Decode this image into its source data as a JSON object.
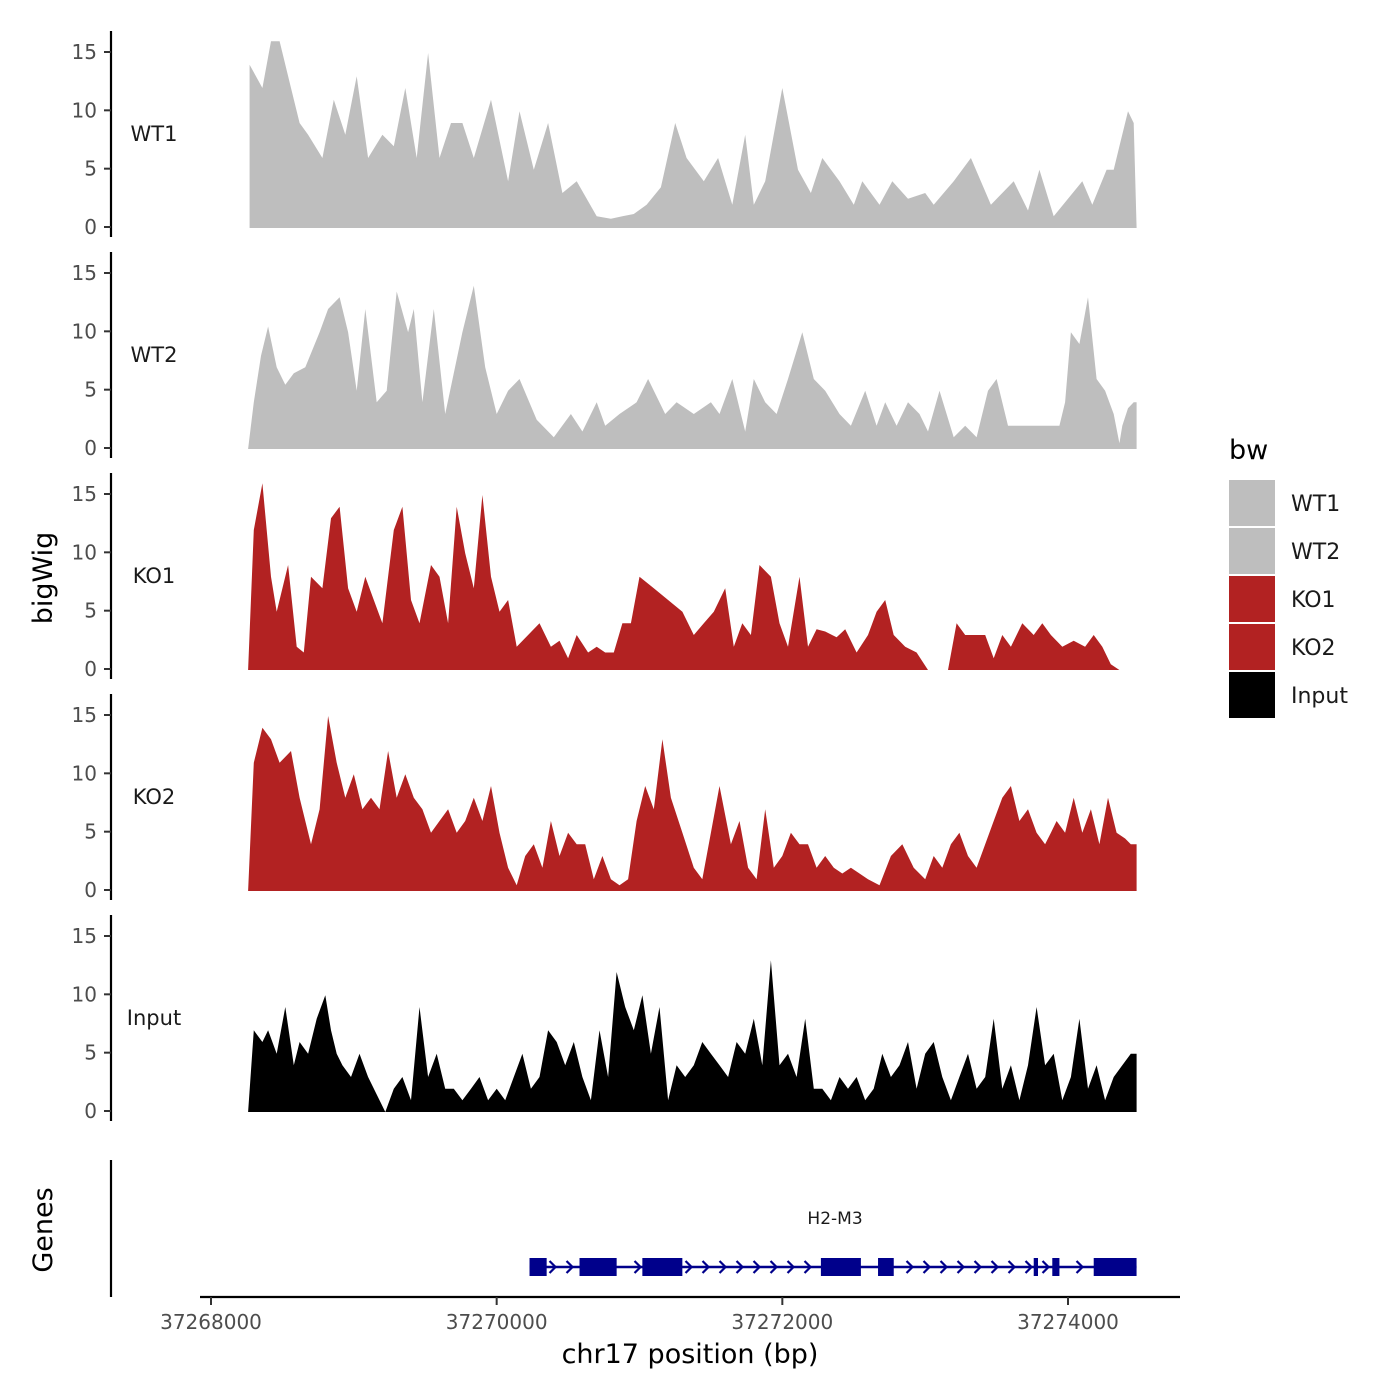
{
  "chart_data": {
    "type": "area",
    "subtype": "genome-browser-coverage",
    "xlabel": "chr17 position (bp)",
    "ylabel": "bigWig",
    "genes_label": "Genes",
    "xlim": [
      37267400,
      37274800
    ],
    "x_ticks": [
      37268000,
      37270000,
      37272000,
      37274000
    ],
    "ylim": [
      0,
      16
    ],
    "y_ticks": [
      0,
      5,
      10,
      15
    ],
    "legend": {
      "title": "bw",
      "entries": [
        {
          "name": "WT1",
          "color": "#bebebe"
        },
        {
          "name": "WT2",
          "color": "#bebebe"
        },
        {
          "name": "KO1",
          "color": "#b22222"
        },
        {
          "name": "KO2",
          "color": "#b22222"
        },
        {
          "name": "Input",
          "color": "#000000"
        }
      ]
    },
    "series": [
      {
        "name": "WT1",
        "color": "#bebebe",
        "x": [
          37268270,
          37268360,
          37268420,
          37268480,
          37268560,
          37268620,
          37268680,
          37268780,
          37268860,
          37268940,
          37269020,
          37269100,
          37269200,
          37269280,
          37269360,
          37269440,
          37269520,
          37269600,
          37269680,
          37269760,
          37269840,
          37269960,
          37270080,
          37270160,
          37270260,
          37270360,
          37270460,
          37270560,
          37270700,
          37270800,
          37270880,
          37270960,
          37271050,
          37271150,
          37271250,
          37271330,
          37271450,
          37271550,
          37271650,
          37271740,
          37271800,
          37271880,
          37272000,
          37272110,
          37272200,
          37272280,
          37272400,
          37272500,
          37272560,
          37272680,
          37272770,
          37272880,
          37273000,
          37273060,
          37273200,
          37273320,
          37273460,
          37273620,
          37273720,
          37273800,
          37273900,
          37274000,
          37274100,
          37274170,
          37274270,
          37274320,
          37274360,
          37274420,
          37274460,
          37274480
        ],
        "y": [
          14,
          12,
          16,
          16,
          12,
          9,
          8,
          6,
          11,
          8,
          13,
          6,
          8,
          7,
          12,
          6,
          15,
          6,
          9,
          9,
          6,
          11,
          4,
          10,
          5,
          9,
          3,
          4,
          1,
          0.8,
          1,
          1.2,
          2,
          3.5,
          9,
          6,
          4,
          6,
          2,
          8,
          2,
          4,
          12,
          5,
          3,
          6,
          4,
          2,
          4,
          2,
          4,
          2.5,
          3,
          2,
          4,
          6,
          2,
          4,
          1.5,
          5,
          1,
          2.5,
          4,
          2,
          5,
          5,
          7,
          10,
          9,
          0
        ],
        "breaks": []
      },
      {
        "name": "WT2",
        "color": "#bebebe",
        "x": [
          37268260,
          37268300,
          37268350,
          37268400,
          37268460,
          37268520,
          37268580,
          37268660,
          37268760,
          37268820,
          37268900,
          37268960,
          37269020,
          37269080,
          37269160,
          37269230,
          37269300,
          37269380,
          37269420,
          37269480,
          37269560,
          37269640,
          37269760,
          37269840,
          37269920,
          37270000,
          37270080,
          37270160,
          37270280,
          37270400,
          37270520,
          37270600,
          37270700,
          37270760,
          37270860,
          37270980,
          37271060,
          37271180,
          37271260,
          37271380,
          37271500,
          37271560,
          37271650,
          37271740,
          37271800,
          37271880,
          37271960,
          37272040,
          37272140,
          37272220,
          37272300,
          37272400,
          37272480,
          37272580,
          37272660,
          37272720,
          37272800,
          37272880,
          37272960,
          37273020,
          37273100,
          37273200,
          37273280,
          37273360,
          37273440,
          37273500,
          37273580,
          37273640,
          37273700,
          37273760,
          37273820,
          37273880,
          37273940,
          37273980,
          37274020,
          37274080,
          37274140,
          37274200,
          37274260,
          37274320,
          37274360,
          37274380,
          37274420,
          37274460,
          37274480
        ],
        "y": [
          0,
          4,
          8,
          10.5,
          7,
          5.5,
          6.5,
          7,
          10,
          12,
          13,
          10,
          5,
          12,
          4,
          5,
          13.5,
          10,
          12,
          4,
          12,
          3,
          10,
          14,
          7,
          3,
          5,
          6,
          2.5,
          1,
          3,
          1.5,
          4,
          2,
          3,
          4,
          6,
          3,
          4,
          3,
          4,
          3,
          6,
          1.5,
          6,
          4,
          3,
          6,
          10,
          6,
          5,
          3,
          2,
          5,
          2,
          4,
          2,
          4,
          3,
          1.5,
          5,
          1,
          2,
          1,
          5,
          6,
          2,
          2,
          2,
          2,
          2,
          2,
          2,
          4,
          10,
          9,
          13,
          6,
          5,
          3,
          0.5,
          2,
          3.5,
          4,
          4
        ],
        "breaks": []
      },
      {
        "name": "KO1",
        "color": "#b22222",
        "x": [
          37268260,
          37268300,
          37268360,
          37268420,
          37268460,
          37268540,
          37268600,
          37268650,
          37268700,
          37268780,
          37268840,
          37268900,
          37268960,
          37269020,
          37269080,
          37269140,
          37269200,
          37269280,
          37269340,
          37269400,
          37269460,
          37269540,
          37269600,
          37269660,
          37269720,
          37269780,
          37269840,
          37269900,
          37269960,
          37270020,
          37270080,
          37270140,
          37270220,
          37270300,
          37270380,
          37270440,
          37270500,
          37270560,
          37270640,
          37270700,
          37270760,
          37270820,
          37270880,
          37270940,
          37271000,
          37271100,
          37271200,
          37271300,
          37271380,
          37271450,
          37271520,
          37271600,
          37271660,
          37271720,
          37271780,
          37271840,
          37271920,
          37271980,
          37272040,
          37272120,
          37272180,
          37272240,
          37272300,
          37272380,
          37272440,
          37272520,
          37272600,
          37272660,
          37272720,
          37272780,
          37272860,
          37272940,
          37273020,
          37273100,
          37273160,
          37273220,
          37273280,
          37273320,
          37273380,
          37273420,
          37273480,
          37273540,
          37273600,
          37273680,
          37273760,
          37273820,
          37273880,
          37273960,
          37274040,
          37274120,
          37274180,
          37274240,
          37274300,
          37274360,
          37274420,
          37274480
        ],
        "y": [
          0,
          12,
          16,
          8,
          5,
          9,
          2,
          1.5,
          8,
          7,
          13,
          14,
          7,
          5,
          8,
          6,
          4,
          12,
          14,
          6,
          4,
          9,
          8,
          4,
          14,
          10,
          7,
          15,
          8,
          5,
          6,
          2,
          3,
          4,
          2,
          2.5,
          1,
          3,
          1.5,
          2,
          1.5,
          1.5,
          4,
          4,
          8,
          7,
          6,
          5,
          3,
          4,
          5,
          7,
          2,
          4,
          3,
          9,
          8,
          4,
          2,
          8,
          2,
          3.5,
          3.3,
          2.8,
          3.5,
          1.5,
          3,
          5,
          6,
          3,
          2,
          1.5,
          0,
          null,
          0,
          4,
          3,
          3,
          3,
          3,
          1,
          3,
          2,
          4,
          3,
          4,
          3,
          2,
          2.5,
          2,
          3,
          2,
          0.5,
          0,
          0,
          0
        ],
        "breaks": []
      },
      {
        "name": "KO2",
        "color": "#b22222",
        "x": [
          37268260,
          37268300,
          37268360,
          37268420,
          37268480,
          37268560,
          37268620,
          37268700,
          37268760,
          37268820,
          37268880,
          37268940,
          37269000,
          37269060,
          37269120,
          37269180,
          37269240,
          37269300,
          37269360,
          37269420,
          37269480,
          37269540,
          37269600,
          37269660,
          37269720,
          37269780,
          37269840,
          37269900,
          37269960,
          37270020,
          37270080,
          37270140,
          37270200,
          37270260,
          37270320,
          37270380,
          37270440,
          37270500,
          37270560,
          37270620,
          37270680,
          37270740,
          37270800,
          37270860,
          37270920,
          37270980,
          37271040,
          37271100,
          37271160,
          37271220,
          37271300,
          37271380,
          37271440,
          37271500,
          37271560,
          37271640,
          37271700,
          37271760,
          37271820,
          37271880,
          37271940,
          37272000,
          37272060,
          37272120,
          37272180,
          37272240,
          37272300,
          37272360,
          37272420,
          37272480,
          37272540,
          37272600,
          37272680,
          37272760,
          37272840,
          37272920,
          37273000,
          37273060,
          37273120,
          37273180,
          37273240,
          37273300,
          37273360,
          37273420,
          37273480,
          37273540,
          37273600,
          37273660,
          37273720,
          37273780,
          37273840,
          37273880,
          37273920,
          37273980,
          37274040,
          37274100,
          37274160,
          37274220,
          37274280,
          37274340,
          37274400,
          37274440,
          37274480
        ],
        "y": [
          0,
          11,
          14,
          13,
          11,
          12,
          8,
          4,
          7,
          15,
          11,
          8,
          10,
          7,
          8,
          7,
          12,
          8,
          10,
          8,
          7,
          5,
          6,
          7,
          5,
          6,
          8,
          6,
          9,
          5,
          2,
          0.5,
          3,
          4,
          2,
          6,
          3,
          5,
          4,
          4,
          1,
          3,
          1,
          0.5,
          1,
          6,
          9,
          7,
          13,
          8,
          5,
          2,
          1,
          5,
          9,
          4,
          6,
          2,
          1,
          7,
          2,
          3,
          5,
          4,
          4,
          2,
          3,
          2,
          1.5,
          2,
          1.5,
          1,
          0.5,
          3,
          4,
          2,
          1,
          3,
          2,
          4,
          5,
          3,
          2,
          4,
          6,
          8,
          9,
          6,
          7,
          5,
          4,
          5,
          6,
          5,
          8,
          5,
          7,
          4,
          8,
          5,
          4.5,
          4,
          4
        ],
        "breaks": []
      },
      {
        "name": "Input",
        "color": "#000000",
        "x": [
          37268260,
          37268300,
          37268360,
          37268400,
          37268460,
          37268520,
          37268580,
          37268620,
          37268680,
          37268740,
          37268800,
          37268840,
          37268880,
          37268920,
          37268980,
          37269040,
          37269100,
          37269160,
          37269220,
          37269280,
          37269340,
          37269400,
          37269460,
          37269520,
          37269580,
          37269640,
          37269700,
          37269760,
          37269820,
          37269880,
          37269940,
          37270000,
          37270060,
          37270120,
          37270180,
          37270240,
          37270300,
          37270360,
          37270420,
          37270480,
          37270540,
          37270600,
          37270660,
          37270720,
          37270780,
          37270840,
          37270900,
          37270960,
          37271020,
          37271080,
          37271140,
          37271200,
          37271260,
          37271320,
          37271380,
          37271440,
          37271500,
          37271560,
          37271620,
          37271680,
          37271740,
          37271800,
          37271860,
          37271920,
          37271980,
          37272040,
          37272100,
          37272160,
          37272220,
          37272280,
          37272340,
          37272400,
          37272460,
          37272520,
          37272580,
          37272640,
          37272700,
          37272760,
          37272820,
          37272880,
          37272940,
          37273000,
          37273060,
          37273120,
          37273180,
          37273240,
          37273300,
          37273360,
          37273420,
          37273480,
          37273540,
          37273600,
          37273660,
          37273720,
          37273780,
          37273840,
          37273900,
          37273960,
          37274020,
          37274080,
          37274140,
          37274200,
          37274260,
          37274320,
          37274380,
          37274440,
          37274480
        ],
        "y": [
          0,
          7,
          6,
          7,
          5,
          9,
          4,
          6,
          5,
          8,
          10,
          7,
          5,
          4,
          3,
          5,
          3,
          1.5,
          0,
          2,
          3,
          1,
          9,
          3,
          5,
          2,
          2,
          1,
          2,
          3,
          1,
          2,
          1,
          3,
          5,
          2,
          3,
          7,
          6,
          4,
          6,
          3,
          1,
          7,
          3,
          12,
          9,
          7,
          10,
          5,
          9,
          1,
          4,
          3,
          4,
          6,
          5,
          4,
          3,
          6,
          5,
          8,
          4,
          13,
          4,
          5,
          3,
          8,
          2,
          2,
          1,
          3,
          2,
          3,
          1,
          2,
          5,
          3,
          4,
          6,
          2,
          5,
          6,
          3,
          1,
          3,
          5,
          2,
          3,
          8,
          2,
          4,
          1,
          4,
          9,
          4,
          5,
          1,
          3,
          8,
          2,
          4,
          1,
          3,
          4,
          5,
          5
        ],
        "breaks": []
      }
    ],
    "genes": [
      {
        "name": "H2-M3",
        "strand": "+",
        "start": 37270230,
        "end": 37274480,
        "exons": [
          [
            37270230,
            37270350
          ],
          [
            37270580,
            37270840
          ],
          [
            37271020,
            37271300
          ],
          [
            37272270,
            37272550
          ],
          [
            37272670,
            37272780
          ],
          [
            37273760,
            37273790
          ],
          [
            37273890,
            37273940
          ],
          [
            37274180,
            37274480
          ]
        ]
      }
    ]
  }
}
